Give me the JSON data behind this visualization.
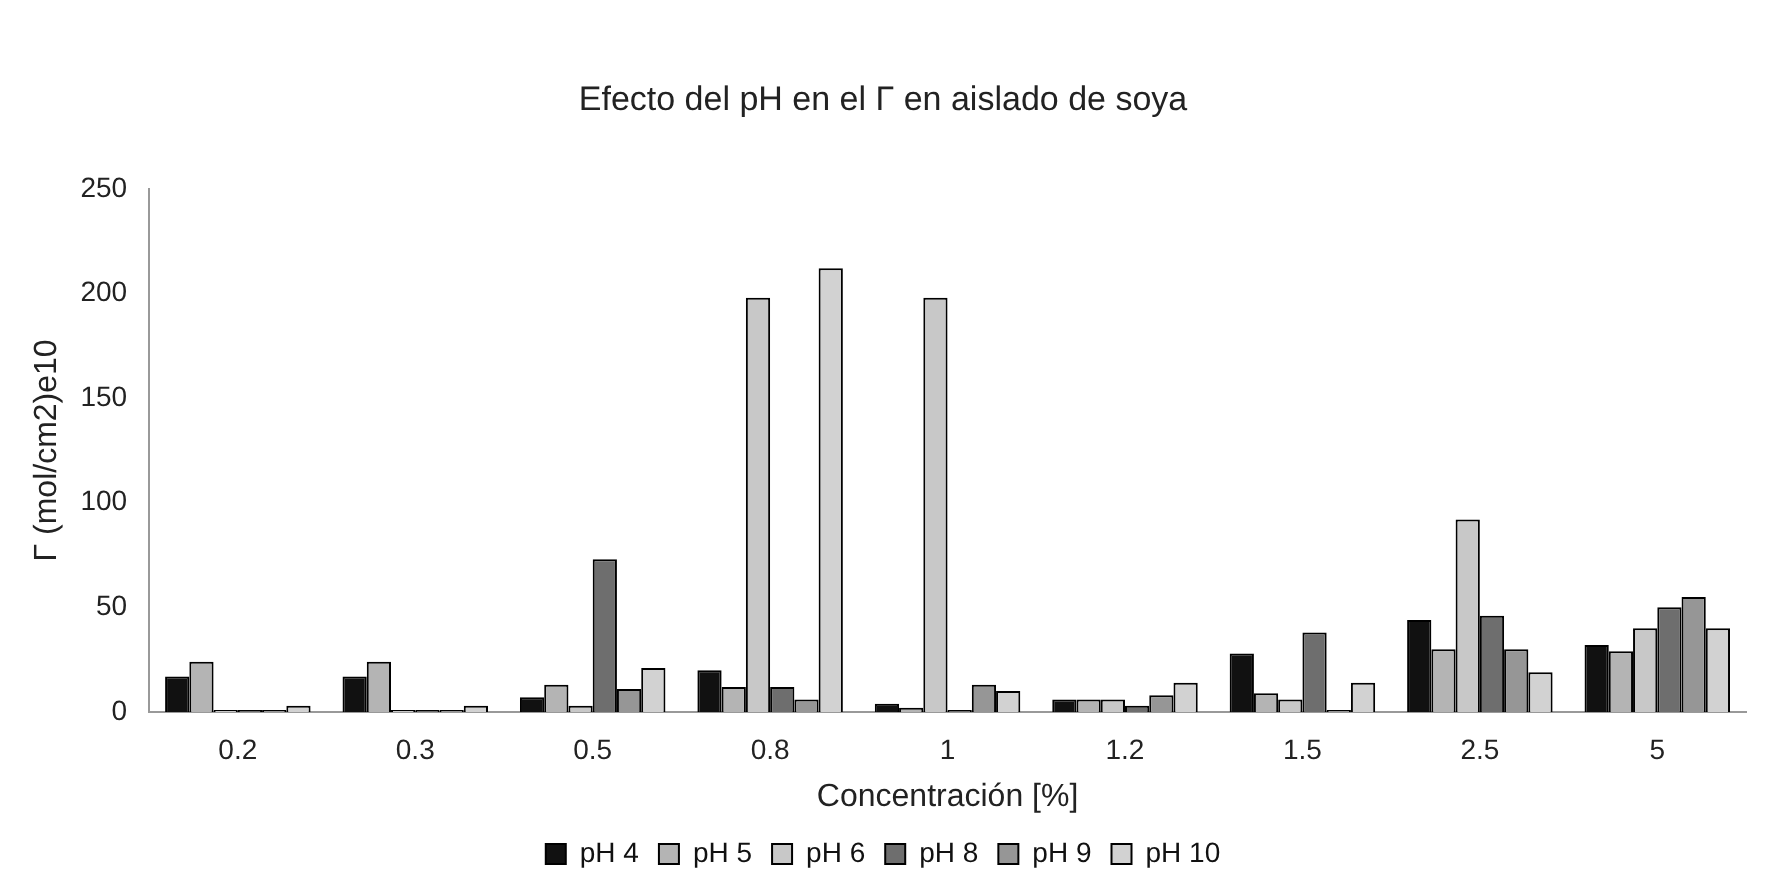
{
  "chart_data": {
    "type": "bar",
    "title": "Efecto del pH en el Γ en aislado de soya",
    "xlabel": "Concentración [%]",
    "ylabel": "Γ (mol/cm2)e10",
    "categories": [
      "0.2",
      "0.3",
      "0.5",
      "0.8",
      "1",
      "1.2",
      "1.5",
      "2.5",
      "5"
    ],
    "series": [
      {
        "name": "pH 4",
        "color": "#111111",
        "values": [
          17,
          17,
          7,
          20,
          4,
          6,
          28,
          44,
          32
        ]
      },
      {
        "name": "pH 5",
        "color": "#b4b4b4",
        "values": [
          24,
          24,
          13,
          12,
          2,
          6,
          9,
          30,
          29
        ]
      },
      {
        "name": "pH 6",
        "color": "#c8c8c8",
        "values": [
          1,
          1,
          3,
          198,
          198,
          6,
          6,
          92,
          40
        ]
      },
      {
        "name": "pH 8",
        "color": "#6e6e6e",
        "values": [
          1,
          1,
          73,
          12,
          1,
          3,
          38,
          46,
          50
        ]
      },
      {
        "name": "pH 9",
        "color": "#969696",
        "values": [
          1,
          1,
          11,
          6,
          13,
          8,
          1,
          30,
          55
        ]
      },
      {
        "name": "pH 10",
        "color": "#d2d2d2",
        "values": [
          3,
          3,
          21,
          212,
          10,
          14,
          14,
          19,
          40
        ]
      }
    ],
    "ylim": [
      0,
      250
    ],
    "yticks": [
      0,
      50,
      100,
      150,
      200,
      250
    ],
    "grid": false,
    "legend": "bottom"
  }
}
